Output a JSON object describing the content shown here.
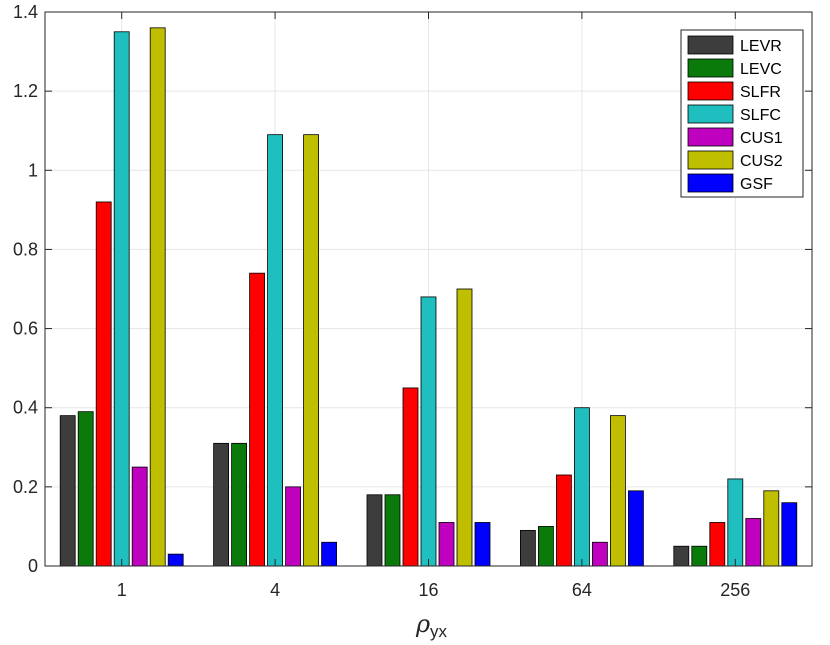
{
  "chart_data": {
    "type": "bar",
    "title": "",
    "xlabel_symbol": "ρ",
    "xlabel_subscript": "yx",
    "ylabel": "",
    "categories": [
      "1",
      "4",
      "16",
      "64",
      "256"
    ],
    "ylim": [
      0,
      1.4
    ],
    "yticks": [
      0,
      0.2,
      0.4,
      0.6,
      0.8,
      1,
      1.2,
      1.4
    ],
    "ytick_labels": [
      "0",
      "0.2",
      "0.4",
      "0.6",
      "0.8",
      "1",
      "1.2",
      "1.4"
    ],
    "grid": true,
    "legend_position": "top-right",
    "series": [
      {
        "name": "LEVR",
        "color": "#3d3d3d",
        "values": [
          0.38,
          0.31,
          0.18,
          0.09,
          0.05
        ]
      },
      {
        "name": "LEVC",
        "color": "#0a7a0a",
        "values": [
          0.39,
          0.31,
          0.18,
          0.1,
          0.05
        ]
      },
      {
        "name": "SLFR",
        "color": "#ff0000",
        "values": [
          0.92,
          0.74,
          0.45,
          0.23,
          0.11
        ]
      },
      {
        "name": "SLFC",
        "color": "#1fbfbf",
        "values": [
          1.35,
          1.09,
          0.68,
          0.4,
          0.22
        ]
      },
      {
        "name": "CUS1",
        "color": "#bf00bf",
        "values": [
          0.25,
          0.2,
          0.11,
          0.06,
          0.12
        ]
      },
      {
        "name": "CUS2",
        "color": "#bfbf00",
        "values": [
          1.36,
          1.09,
          0.7,
          0.38,
          0.19
        ]
      },
      {
        "name": "GSF",
        "color": "#0000ff",
        "values": [
          0.03,
          0.06,
          0.11,
          0.19,
          0.16
        ]
      }
    ]
  }
}
